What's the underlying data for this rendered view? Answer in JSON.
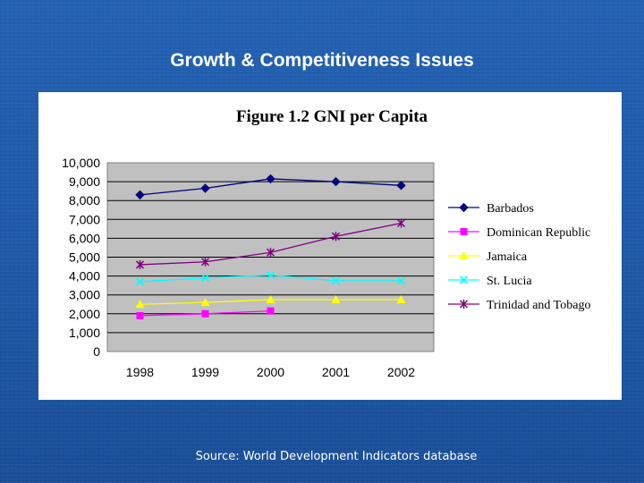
{
  "slide": {
    "title": "Growth & Competitiveness Issues",
    "source": "Source: World Development Indicators database"
  },
  "colors": {
    "background": "#1f5aa8",
    "plot_area": "#c0c0c0"
  },
  "chart_data": {
    "type": "line",
    "title": "Figure 1.2 GNI per Capita",
    "xlabel": "",
    "ylabel": "",
    "categories": [
      "1998",
      "1999",
      "2000",
      "2001",
      "2002"
    ],
    "ylim": [
      0,
      10000
    ],
    "yticks": [
      "0",
      "1,000",
      "2,000",
      "3,000",
      "4,000",
      "5,000",
      "6,000",
      "7,000",
      "8,000",
      "9,000",
      "10,000"
    ],
    "grid": "horizontal major only",
    "legend_position": "right",
    "series": [
      {
        "name": "Barbados",
        "values": [
          8300,
          8650,
          9150,
          9000,
          8800
        ],
        "color": "#000080",
        "marker": "diamond"
      },
      {
        "name": "Dominican Republic",
        "values": [
          1900,
          2000,
          2150,
          null,
          null
        ],
        "color": "#ff00ff",
        "marker": "square"
      },
      {
        "name": "Jamaica",
        "values": [
          2500,
          2600,
          2750,
          2750,
          2750
        ],
        "color": "#ffff00",
        "marker": "triangle"
      },
      {
        "name": "St. Lucia",
        "values": [
          3700,
          3900,
          4050,
          3750,
          3750
        ],
        "color": "#00ffff",
        "marker": "x"
      },
      {
        "name": "Trinidad and Tobago",
        "values": [
          4600,
          4750,
          5250,
          6100,
          6800
        ],
        "color": "#800080",
        "marker": "asterisk"
      }
    ]
  }
}
